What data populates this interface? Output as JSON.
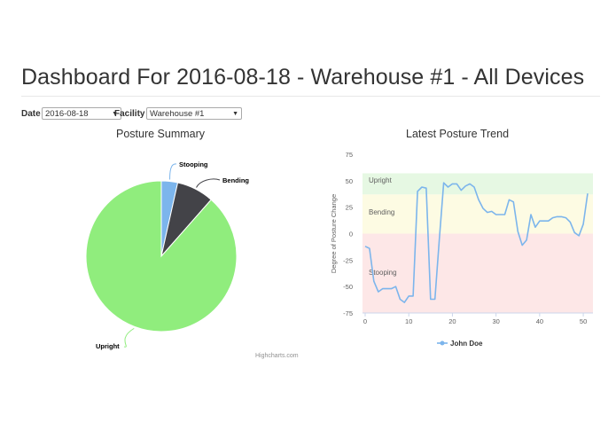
{
  "header": {
    "title": "Dashboard For 2016-08-18 - Warehouse #1 - All Devices"
  },
  "filters": {
    "date_label": "Date",
    "date_value": "2016-08-18",
    "facility_label": "Facility",
    "facility_value": "Warehouse #1"
  },
  "credit": "Highcharts.com",
  "colors": {
    "upright": "#90ed7d",
    "bending": "#434348",
    "stooping": "#7cb5ec",
    "series": "#7cb5ec",
    "band_upright": "#e6f8e3",
    "band_bending": "#fdfbe3",
    "band_stooping": "#fde7e7"
  },
  "chart_data": [
    {
      "type": "pie",
      "title": "Posture Summary",
      "labels": [
        "Stooping",
        "Bending",
        "Upright"
      ],
      "values": [
        3.5,
        8,
        88.5
      ]
    },
    {
      "type": "line",
      "title": "Latest Posture Trend",
      "ylabel": "Degree of Posture Change",
      "ylim": [
        -75,
        75
      ],
      "yticks": [
        -75,
        -50,
        -25,
        0,
        25,
        50,
        75
      ],
      "xlim": [
        0,
        51
      ],
      "xticks": [
        0,
        10,
        20,
        30,
        40,
        50
      ],
      "bands": [
        {
          "label": "Upright",
          "from": 37,
          "to": 57
        },
        {
          "label": "Bending",
          "from": 0,
          "to": 37
        },
        {
          "label": "Stooping",
          "from": -75,
          "to": 0
        }
      ],
      "series": [
        {
          "name": "John Doe",
          "x": [
            0,
            1,
            2,
            3,
            4,
            5,
            6,
            7,
            8,
            9,
            10,
            11,
            12,
            13,
            14,
            15,
            16,
            17,
            18,
            19,
            20,
            21,
            22,
            23,
            24,
            25,
            26,
            27,
            28,
            29,
            30,
            31,
            32,
            33,
            34,
            35,
            36,
            37,
            38,
            39,
            40,
            41,
            42,
            43,
            44,
            45,
            46,
            47,
            48,
            49,
            50,
            51
          ],
          "y": [
            -12,
            -14,
            -45,
            -55,
            -52,
            -52,
            -52,
            -50,
            -62,
            -65,
            -59,
            -59,
            40,
            44,
            43,
            -62,
            -62,
            -5,
            48,
            44,
            47,
            47,
            41,
            45,
            47,
            44,
            32,
            24,
            20,
            21,
            18,
            18,
            18,
            32,
            30,
            2,
            -11,
            -6,
            18,
            6,
            12,
            12,
            12,
            15,
            16,
            16,
            15,
            11,
            1,
            -2,
            9,
            38
          ]
        }
      ]
    }
  ]
}
